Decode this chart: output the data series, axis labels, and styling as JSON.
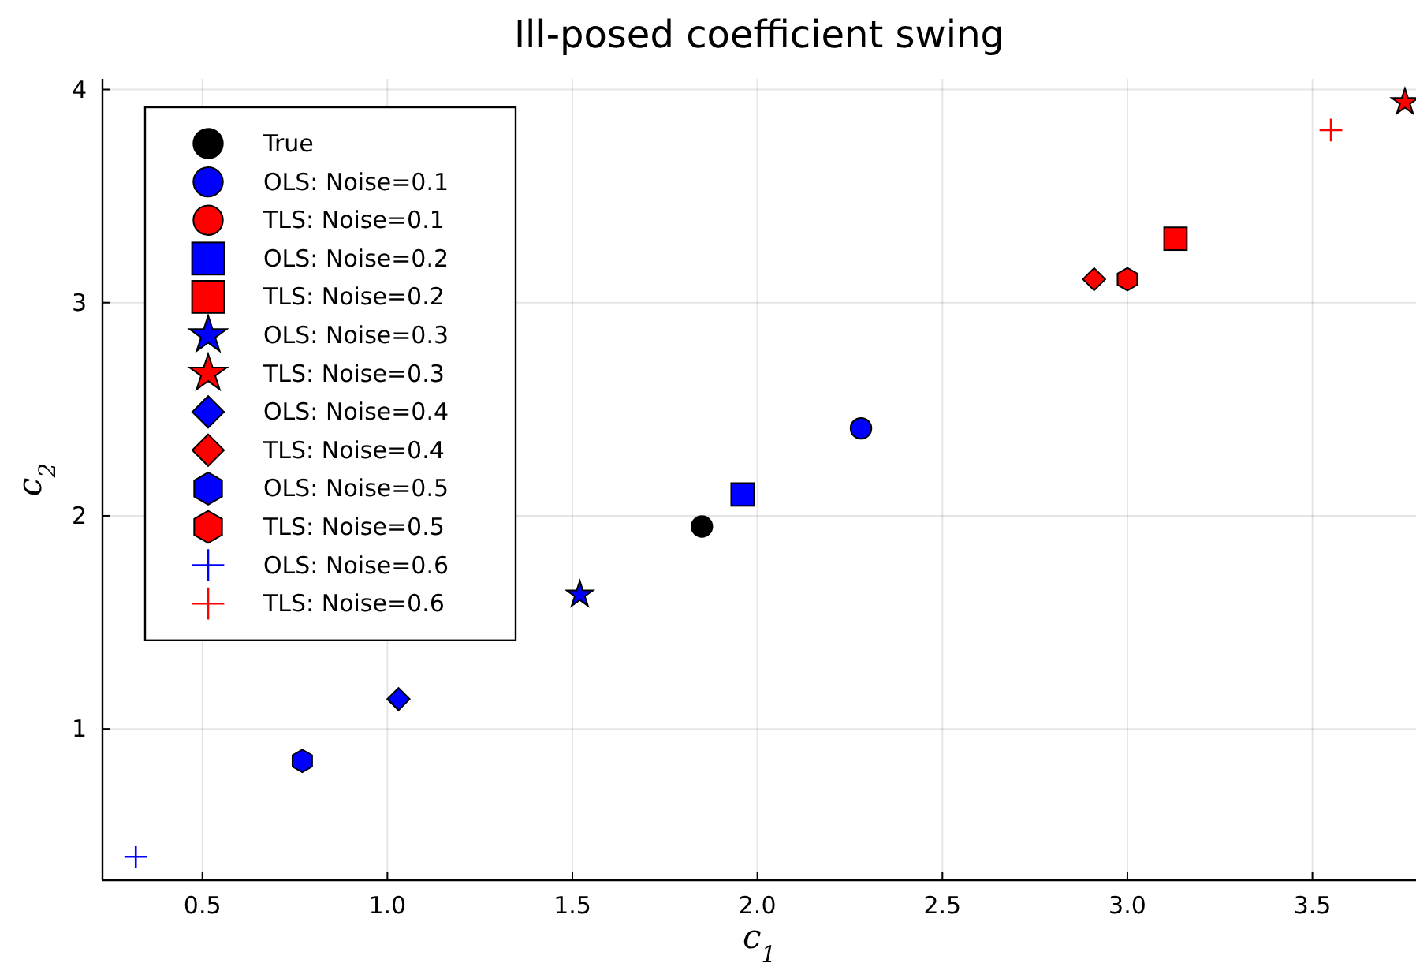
{
  "chart_data": {
    "type": "scatter",
    "title": "Ill-posed coefficient swing",
    "xlabel": "c$_{1}$",
    "ylabel": "c$_{2}$",
    "xlim": [
      0.23,
      3.78
    ],
    "ylim": [
      0.29,
      4.05
    ],
    "xticks": [
      {
        "value": 0.5,
        "label": "0.5"
      },
      {
        "value": 1,
        "label": "1.0"
      },
      {
        "value": 1.5,
        "label": "1.5"
      },
      {
        "value": 2,
        "label": "2.0"
      },
      {
        "value": 2.5,
        "label": "2.5"
      },
      {
        "value": 3,
        "label": "3.0"
      },
      {
        "value": 3.5,
        "label": "3.5"
      }
    ],
    "yticks": [
      1,
      2,
      3,
      4
    ],
    "grid": true,
    "legend": "top left",
    "series": [
      {
        "name": "True",
        "color": "#000000",
        "marker": "circle",
        "x": [
          1.85
        ],
        "values": [
          1.95
        ]
      },
      {
        "name": "OLS: Noise=0.1",
        "color": "#0000ff",
        "marker": "circle",
        "x": [
          2.28
        ],
        "values": [
          2.41
        ]
      },
      {
        "name": "TLS: Noise=0.1",
        "color": "#ff0000",
        "marker": "circle",
        "x": [
          null
        ],
        "values": [
          null
        ]
      },
      {
        "name": "OLS: Noise=0.2",
        "color": "#0000ff",
        "marker": "square",
        "x": [
          1.96
        ],
        "values": [
          2.1
        ]
      },
      {
        "name": "TLS: Noise=0.2",
        "color": "#ff0000",
        "marker": "square",
        "x": [
          3.13
        ],
        "values": [
          3.3
        ]
      },
      {
        "name": "OLS: Noise=0.3",
        "color": "#0000ff",
        "marker": "star",
        "x": [
          1.52
        ],
        "values": [
          1.63
        ]
      },
      {
        "name": "TLS: Noise=0.3",
        "color": "#ff0000",
        "marker": "star",
        "x": [
          3.75
        ],
        "values": [
          3.94
        ]
      },
      {
        "name": "OLS: Noise=0.4",
        "color": "#0000ff",
        "marker": "diamond",
        "x": [
          1.03
        ],
        "values": [
          1.14
        ]
      },
      {
        "name": "TLS: Noise=0.4",
        "color": "#ff0000",
        "marker": "diamond",
        "x": [
          2.91
        ],
        "values": [
          3.11
        ]
      },
      {
        "name": "OLS: Noise=0.5",
        "color": "#0000ff",
        "x": [
          0.77
        ],
        "values": [
          0.85
        ]
      },
      {
        "name": "TLS: Noise=0.5",
        "color": "#ff0000",
        "x": [
          3.0
        ],
        "values": [
          3.11
        ]
      },
      {
        "name": "OLS: Noise=0.6",
        "color": "#0000ff",
        "marker": "cross",
        "x": [
          0.32
        ],
        "values": [
          0.4
        ]
      },
      {
        "name": "TLS: Noise=0.6",
        "color": "#ff0000",
        "marker": "cross",
        "x": [
          3.55
        ],
        "values": [
          3.81
        ]
      }
    ]
  }
}
